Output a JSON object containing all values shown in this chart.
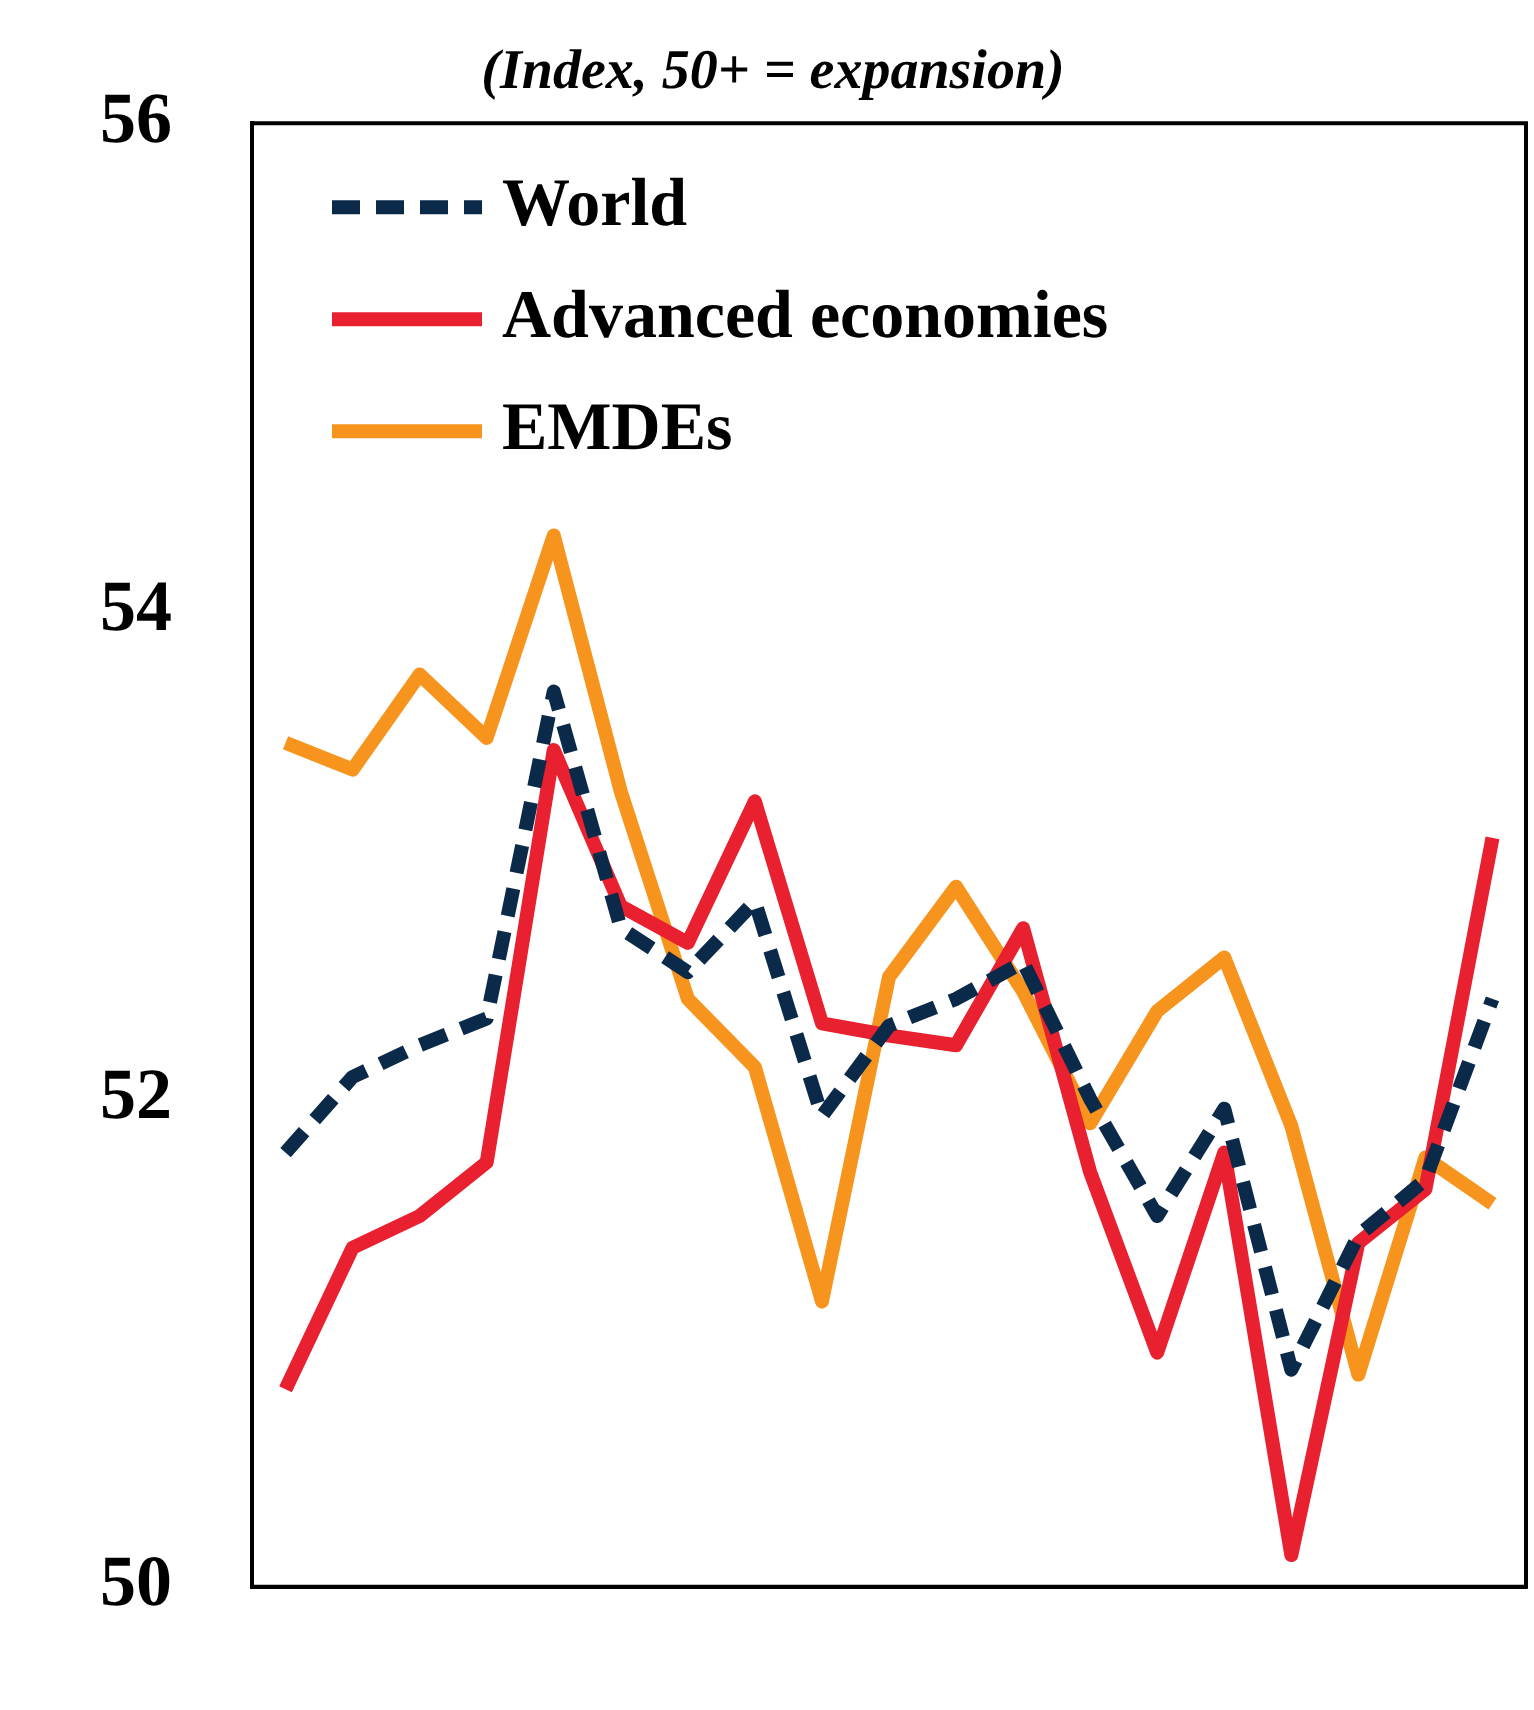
{
  "chart_data": {
    "type": "line",
    "subtitle": "(Index, 50+ = expansion)",
    "categories": [
      null,
      null,
      null,
      null,
      null,
      null,
      null,
      null,
      null,
      null,
      null,
      null,
      null,
      null,
      null,
      null,
      null,
      null,
      null
    ],
    "series": [
      {
        "name": "World",
        "color": "#0b2a4a",
        "line_style": "dashed",
        "values": [
          51.78,
          52.09,
          52.22,
          52.33,
          53.67,
          52.7,
          52.52,
          52.81,
          51.93,
          52.3,
          52.41,
          52.56,
          52.0,
          51.52,
          51.96,
          50.89,
          51.44,
          51.67,
          52.41
        ]
      },
      {
        "name": "Advanced economies",
        "color": "#e8202f",
        "line_style": "solid",
        "values": [
          50.81,
          51.39,
          51.52,
          51.74,
          53.43,
          52.79,
          52.64,
          53.22,
          52.31,
          52.26,
          52.22,
          52.7,
          51.7,
          50.96,
          51.78,
          50.13,
          51.41,
          51.63,
          53.07
        ]
      },
      {
        "name": "EMDEs",
        "color": "#f7941d",
        "line_style": "solid",
        "values": [
          53.46,
          53.35,
          53.74,
          53.48,
          54.31,
          53.26,
          52.41,
          52.13,
          51.17,
          52.5,
          52.87,
          52.44,
          51.9,
          52.36,
          52.58,
          51.89,
          50.87,
          51.76,
          51.57
        ]
      }
    ],
    "ylim": [
      50,
      56
    ],
    "yticks": [
      50,
      52,
      54,
      56
    ],
    "grid": false,
    "legend": "top left",
    "tick_labels": "y",
    "marker": "none"
  }
}
